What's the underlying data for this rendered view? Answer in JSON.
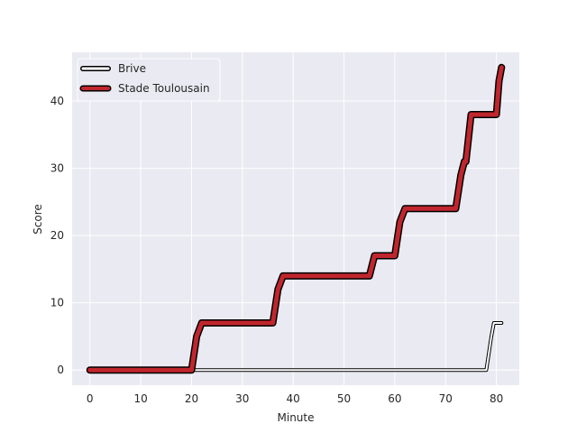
{
  "chart_data": {
    "type": "line",
    "xlabel": "Minute",
    "ylabel": "Score",
    "xlim": [
      -3.5,
      84.5
    ],
    "ylim": [
      -2.25,
      47.25
    ],
    "xticks": [
      0,
      10,
      20,
      30,
      40,
      50,
      60,
      70,
      80
    ],
    "yticks": [
      0,
      10,
      20,
      30,
      40
    ],
    "grid": true,
    "legend": "top-left",
    "series": [
      {
        "name": "Brive",
        "fill_color": "#ffffff",
        "edge_color": "#000000",
        "x": [
          0,
          78,
          79,
          79.5,
          80,
          80.5,
          81
        ],
        "y": [
          0,
          0,
          5,
          7,
          7,
          7,
          7
        ]
      },
      {
        "name": "Stade Toulousain",
        "fill_color": "#c0262d",
        "edge_color": "#000000",
        "x": [
          0,
          20,
          21,
          22,
          36,
          37,
          38,
          55,
          56,
          57,
          60,
          61,
          62,
          72,
          73,
          73.7,
          74,
          75,
          80,
          80.5,
          81
        ],
        "y": [
          0,
          0,
          5,
          7,
          7,
          12,
          14,
          14,
          17,
          17,
          17,
          22,
          24,
          24,
          29,
          31,
          31,
          38,
          38,
          43,
          45
        ]
      }
    ]
  }
}
